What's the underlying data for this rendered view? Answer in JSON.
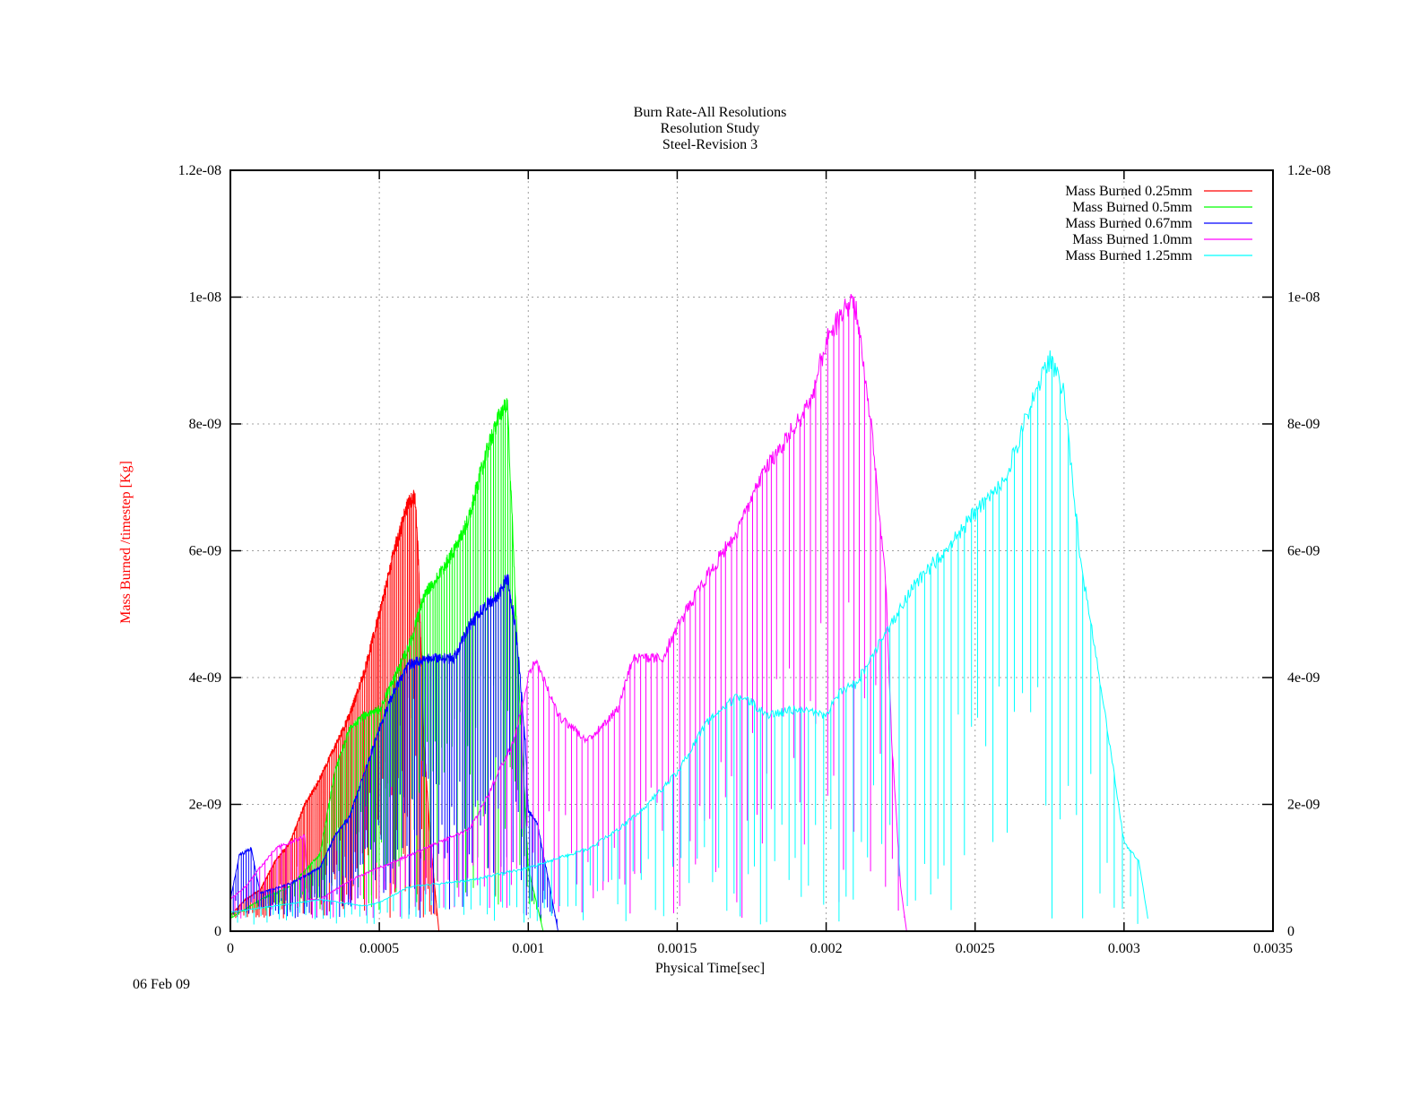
{
  "chart_data": {
    "type": "line",
    "title_lines": [
      "Burn Rate-All Resolutions",
      "Resolution Study",
      "Steel-Revision 3"
    ],
    "xlabel": "Physical Time[sec]",
    "ylabel": "Mass Burned /timestep  [Kg]",
    "date_label": "06 Feb 09",
    "xlim": [
      0,
      0.0035
    ],
    "ylim": [
      0,
      1.2e-08
    ],
    "x_ticks": [
      0,
      0.0005,
      0.001,
      0.0015,
      0.002,
      0.0025,
      0.003,
      0.0035
    ],
    "x_tick_labels": [
      "0",
      "0.0005",
      "0.001",
      "0.0015",
      "0.002",
      "0.0025",
      "0.003",
      "0.0035"
    ],
    "y_ticks": [
      0,
      2e-09,
      4e-09,
      6e-09,
      8e-09,
      1e-08,
      1.2e-08
    ],
    "y_tick_labels": [
      "0",
      "2e-09",
      "4e-09",
      "6e-09",
      "8e-09",
      "1e-08",
      "1.2e-08"
    ],
    "grid": true,
    "legend_position": "top-right",
    "series": [
      {
        "name": "Mass Burned 0.25mm",
        "color": "#ff0000",
        "envelope_x": [
          0,
          5e-05,
          0.0001,
          0.00015,
          0.0002,
          0.00025,
          0.0003,
          0.00035,
          0.0004,
          0.00045,
          0.0005,
          0.00055,
          0.0006,
          0.00062,
          0.00063,
          0.00065,
          0.00067,
          0.00069,
          0.0007
        ],
        "envelope_y": [
          2.5e-10,
          5e-10,
          6.5e-10,
          1.1e-09,
          1.4e-09,
          2e-09,
          2.4e-09,
          2.9e-09,
          3.4e-09,
          4.1e-09,
          5e-09,
          6e-09,
          6.8e-09,
          6.85e-09,
          6e-09,
          3e-09,
          1.5e-09,
          5e-10,
          0
        ],
        "dip_floor": 2e-10
      },
      {
        "name": "Mass Burned 0.5mm",
        "color": "#00ff00",
        "envelope_x": [
          0,
          0.0001,
          0.0002,
          0.0003,
          0.00035,
          0.0004,
          0.00045,
          0.0005,
          0.00055,
          0.0006,
          0.00065,
          0.0007,
          0.00075,
          0.0008,
          0.00085,
          0.0009,
          0.00093,
          0.00095,
          0.00097,
          0.001,
          0.00105
        ],
        "envelope_y": [
          2e-10,
          5e-10,
          7e-10,
          1.2e-09,
          2.5e-09,
          3.2e-09,
          3.4e-09,
          3.5e-09,
          4e-09,
          4.5e-09,
          5.3e-09,
          5.6e-09,
          6e-09,
          6.5e-09,
          7.4e-09,
          8.1e-09,
          8.3e-09,
          6e-09,
          3.8e-09,
          1e-09,
          0
        ],
        "dip_floor": 3e-10
      },
      {
        "name": "Mass Burned 0.67mm",
        "color": "#0000ff",
        "envelope_x": [
          0,
          3e-05,
          7e-05,
          0.0001,
          0.0002,
          0.0003,
          0.00035,
          0.0004,
          0.00045,
          0.0005,
          0.00055,
          0.0006,
          0.00065,
          0.0007,
          0.00075,
          0.0008,
          0.00085,
          0.0009,
          0.00093,
          0.00096,
          0.00099,
          0.001,
          0.00103,
          0.00106,
          0.0011
        ],
        "envelope_y": [
          5e-10,
          1.2e-09,
          1.3e-09,
          6e-10,
          7.5e-10,
          1e-09,
          1.5e-09,
          1.8e-09,
          2.5e-09,
          3.2e-09,
          3.8e-09,
          4.2e-09,
          4.3e-09,
          4.3e-09,
          4.3e-09,
          4.8e-09,
          5.1e-09,
          5.3e-09,
          5.6e-09,
          4.7e-09,
          3e-09,
          1.9e-09,
          1.7e-09,
          1e-09,
          0
        ],
        "dip_floor": 2e-10
      },
      {
        "name": "Mass Burned 1.0mm",
        "color": "#ff00ff",
        "envelope_x": [
          0,
          5e-05,
          0.0001,
          0.00015,
          0.0002,
          0.00025,
          0.00026,
          0.0003,
          0.0004,
          0.0005,
          0.0006,
          0.0007,
          0.0008,
          0.00085,
          0.0009,
          0.00095,
          0.001,
          0.00102,
          0.00105,
          0.0011,
          0.0012,
          0.0013,
          0.00135,
          0.0014,
          0.00145,
          0.0015,
          0.0016,
          0.0017,
          0.0018,
          0.0019,
          0.00195,
          0.002,
          0.00205,
          0.00209,
          0.0021,
          0.00215,
          0.0022,
          0.00222,
          0.00225,
          0.00227
        ],
        "envelope_y": [
          5e-10,
          7e-10,
          1e-09,
          1.3e-09,
          1.4e-09,
          1.5e-09,
          5e-10,
          5e-10,
          8e-10,
          1e-09,
          1.2e-09,
          1.4e-09,
          1.6e-09,
          2e-09,
          2.5e-09,
          3e-09,
          4e-09,
          4.3e-09,
          4e-09,
          3.4e-09,
          3e-09,
          3.5e-09,
          4.3e-09,
          4.3e-09,
          4.3e-09,
          4.8e-09,
          5.6e-09,
          6.3e-09,
          7.3e-09,
          8e-09,
          8.4e-09,
          9.3e-09,
          9.7e-09,
          1e-08,
          9.8e-09,
          8e-09,
          5.5e-09,
          3e-09,
          7e-10,
          0
        ],
        "dip_floor": 2e-10
      },
      {
        "name": "Mass Burned 1.25mm",
        "color": "#00ffff",
        "envelope_x": [
          0,
          0.0003,
          0.00045,
          0.0005,
          0.0006,
          0.0008,
          0.001,
          0.0012,
          0.0013,
          0.0014,
          0.0015,
          0.0016,
          0.0017,
          0.00175,
          0.0018,
          0.0019,
          0.002,
          0.00205,
          0.0021,
          0.0022,
          0.0023,
          0.0024,
          0.0025,
          0.0026,
          0.0027,
          0.00275,
          0.0028,
          0.00285,
          0.0029,
          0.00295,
          0.003,
          0.00305,
          0.00308
        ],
        "envelope_y": [
          3e-10,
          5e-10,
          4e-10,
          4.5e-10,
          7e-10,
          8e-10,
          1e-09,
          1.3e-09,
          1.6e-09,
          2e-09,
          2.5e-09,
          3.3e-09,
          3.7e-09,
          3.6e-09,
          3.4e-09,
          3.5e-09,
          3.4e-09,
          3.8e-09,
          3.9e-09,
          4.7e-09,
          5.5e-09,
          6e-09,
          6.6e-09,
          7.1e-09,
          8.5e-09,
          9e-09,
          8.5e-09,
          6e-09,
          4.5e-09,
          3e-09,
          1.4e-09,
          1.1e-09,
          2e-10
        ],
        "dip_floor": 1e-10
      }
    ]
  }
}
